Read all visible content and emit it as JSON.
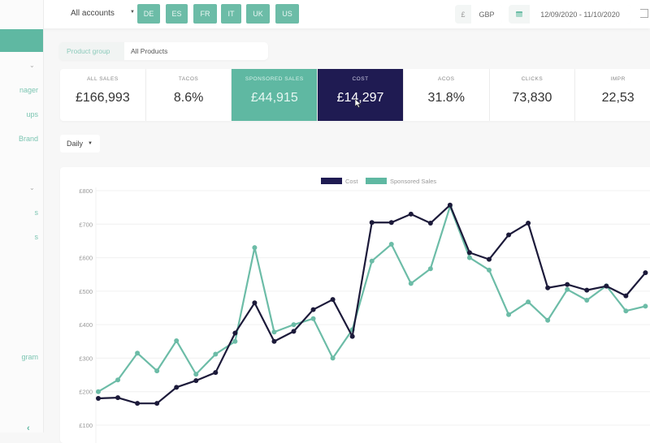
{
  "topbar": {
    "menu_icon": "hamburger-icon",
    "account_select": "All accounts",
    "marketplaces": [
      "DE",
      "ES",
      "FR",
      "IT",
      "UK",
      "US"
    ],
    "currency_symbol": "£",
    "currency": "GBP",
    "date_range": "12/09/2020 - 11/10/2020",
    "logout_icon": "logout-icon"
  },
  "sidebar": {
    "items": [
      {
        "label": "nager",
        "y": 111
      },
      {
        "label": "ups",
        "y": 141
      },
      {
        "label": "Brand",
        "y": 171
      },
      {
        "label": "s",
        "y": 262
      },
      {
        "label": "s",
        "y": 292
      },
      {
        "label": "gram",
        "y": 440
      }
    ],
    "chevrons": [
      80,
      231
    ]
  },
  "filters": {
    "product_group_label": "Product group",
    "product_group_value": "All Products",
    "interval": "Daily"
  },
  "kpis": [
    {
      "label": "ALL SALES",
      "value": "£166,993",
      "style": "default"
    },
    {
      "label": "TACOS",
      "value": "8.6%",
      "style": "default"
    },
    {
      "label": "SPONSORED SALES",
      "value": "£44,915",
      "style": "teal"
    },
    {
      "label": "COST",
      "value": "£14,297",
      "style": "navy"
    },
    {
      "label": "ACOS",
      "value": "31.8%",
      "style": "default"
    },
    {
      "label": "CLICKS",
      "value": "73,830",
      "style": "default"
    },
    {
      "label": "IMPR",
      "value": "22,53",
      "style": "default"
    }
  ],
  "colors": {
    "teal": "#5fb8a2",
    "navy": "#1f1b52",
    "cost_line": "#1c1a3a",
    "sales_line": "#6cbca7"
  },
  "chart_data": {
    "type": "line",
    "title": "",
    "legend": [
      "Cost",
      "Sponsored Sales"
    ],
    "legend_position": "top",
    "ylabel": "",
    "xlabel": "",
    "yticks": [
      "£800",
      "£700",
      "£600",
      "£500",
      "£400",
      "£300",
      "£200",
      "£100"
    ],
    "ylim": [
      100,
      800
    ],
    "grid": true,
    "x": [
      1,
      2,
      3,
      4,
      5,
      6,
      7,
      8,
      9,
      10,
      11,
      12,
      13,
      14,
      15,
      16,
      17,
      18,
      19,
      20,
      21,
      22,
      23,
      24,
      25,
      26,
      27,
      28,
      29
    ],
    "series": [
      {
        "name": "Cost",
        "color": "#1c1a3a",
        "values": [
          180,
          182,
          165,
          165,
          213,
          233,
          257,
          375,
          465,
          350,
          380,
          445,
          475,
          365,
          705,
          705,
          730,
          703,
          757,
          615,
          595,
          668,
          703,
          510,
          520,
          503,
          515,
          486,
          555
        ]
      },
      {
        "name": "Sponsored Sales",
        "color": "#6cbca7",
        "values": [
          200,
          235,
          315,
          262,
          352,
          252,
          312,
          350,
          630,
          378,
          400,
          418,
          300,
          385,
          590,
          640,
          523,
          567,
          753,
          600,
          563,
          430,
          468,
          413,
          505,
          473,
          516,
          441,
          455
        ]
      }
    ]
  }
}
